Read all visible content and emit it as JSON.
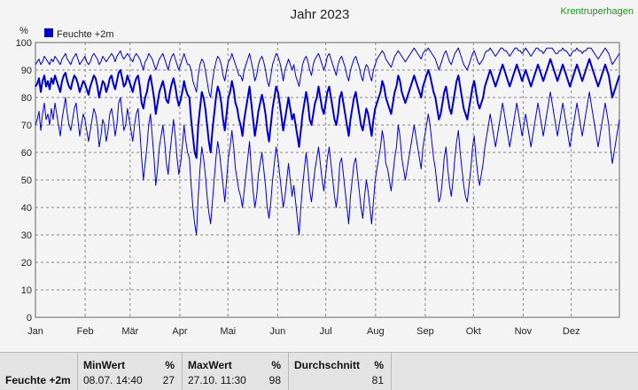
{
  "header": {
    "title": "Jahr 2023",
    "station": "Krentruperhagen"
  },
  "chart_data": {
    "type": "line",
    "title": "Jahr 2023",
    "ylabel": "%",
    "ylim": [
      0,
      100
    ],
    "yticks": [
      0,
      10,
      20,
      30,
      40,
      50,
      60,
      70,
      80,
      90,
      100
    ],
    "xlim": [
      "2023-01-01",
      "2023-12-31"
    ],
    "months": [
      "Jan",
      "Feb",
      "Mär",
      "Apr",
      "Mai",
      "Jun",
      "Jul",
      "Aug",
      "Sep",
      "Okt",
      "Nov",
      "Dez"
    ],
    "grid": true,
    "legend_position": "top-left",
    "series": [
      {
        "name": "Feuchte +2m",
        "color": "#0000cc",
        "daily_mean": [
          84,
          85,
          87,
          82,
          86,
          88,
          84,
          86,
          83,
          87,
          85,
          88,
          86,
          84,
          82,
          86,
          88,
          89,
          86,
          84,
          83,
          86,
          88,
          87,
          85,
          82,
          84,
          86,
          85,
          83,
          81,
          84,
          86,
          88,
          87,
          84,
          80,
          83,
          86,
          85,
          82,
          84,
          87,
          88,
          85,
          83,
          86,
          89,
          90,
          87,
          84,
          85,
          88,
          86,
          84,
          82,
          85,
          87,
          88,
          84,
          78,
          76,
          80,
          82,
          86,
          88,
          84,
          80,
          74,
          78,
          82,
          84,
          86,
          83,
          79,
          78,
          82,
          85,
          87,
          84,
          80,
          77,
          79,
          82,
          86,
          83,
          81,
          80,
          72,
          66,
          60,
          58,
          70,
          76,
          82,
          80,
          76,
          70,
          64,
          60,
          68,
          74,
          80,
          84,
          82,
          78,
          72,
          68,
          74,
          80,
          82,
          86,
          83,
          78,
          76,
          72,
          70,
          66,
          72,
          76,
          80,
          84,
          78,
          72,
          66,
          70,
          75,
          78,
          81,
          78,
          74,
          68,
          64,
          70,
          76,
          80,
          84,
          82,
          78,
          73,
          68,
          72,
          76,
          80,
          76,
          72,
          74,
          70,
          66,
          62,
          68,
          74,
          78,
          82,
          78,
          72,
          70,
          74,
          78,
          80,
          84,
          80,
          76,
          74,
          78,
          82,
          84,
          80,
          76,
          72,
          70,
          74,
          80,
          82,
          78,
          74,
          70,
          66,
          72,
          76,
          80,
          82,
          78,
          74,
          70,
          68,
          72,
          76,
          74,
          70,
          66,
          72,
          76,
          78,
          80,
          82,
          86,
          84,
          80,
          78,
          76,
          74,
          78,
          82,
          84,
          88,
          86,
          82,
          80,
          78,
          80,
          82,
          84,
          86,
          88,
          86,
          84,
          82,
          80,
          84,
          86,
          88,
          90,
          88,
          85,
          82,
          80,
          76,
          72,
          74,
          78,
          82,
          84,
          80,
          76,
          74,
          78,
          82,
          86,
          88,
          84,
          80,
          76,
          74,
          72,
          76,
          80,
          84,
          86,
          82,
          78,
          76,
          78,
          80,
          84,
          86,
          88,
          90,
          88,
          86,
          84,
          86,
          88,
          90,
          92,
          90,
          88,
          86,
          84,
          86,
          88,
          90,
          92,
          90,
          88,
          86,
          88,
          90,
          88,
          86,
          84,
          86,
          88,
          90,
          92,
          90,
          88,
          86,
          88,
          90,
          92,
          94,
          92,
          90,
          88,
          86,
          88,
          90,
          92,
          90,
          88,
          86,
          84,
          86,
          88,
          90,
          92,
          90,
          88,
          86,
          88,
          90,
          92,
          94,
          92,
          90,
          88,
          86,
          84,
          86,
          88,
          90,
          92,
          90,
          88,
          84,
          80,
          82,
          84,
          86,
          88
        ],
        "daily_max": [
          92,
          93,
          94,
          92,
          93,
          95,
          94,
          93,
          92,
          94,
          93,
          95,
          94,
          93,
          92,
          94,
          95,
          96,
          94,
          93,
          92,
          94,
          95,
          96,
          94,
          92,
          93,
          94,
          95,
          93,
          92,
          93,
          95,
          96,
          95,
          94,
          92,
          93,
          95,
          94,
          93,
          94,
          95,
          96,
          95,
          93,
          95,
          96,
          97,
          95,
          94,
          95,
          96,
          95,
          94,
          93,
          95,
          96,
          95,
          94,
          92,
          90,
          93,
          94,
          96,
          95,
          94,
          92,
          90,
          92,
          94,
          95,
          96,
          94,
          92,
          90,
          93,
          95,
          96,
          94,
          92,
          90,
          92,
          94,
          96,
          94,
          92,
          92,
          90,
          86,
          84,
          82,
          88,
          92,
          94,
          93,
          90,
          86,
          82,
          80,
          86,
          90,
          93,
          95,
          94,
          92,
          88,
          86,
          90,
          93,
          94,
          96,
          94,
          92,
          90,
          88,
          88,
          86,
          90,
          92,
          94,
          96,
          93,
          90,
          86,
          88,
          92,
          94,
          95,
          93,
          90,
          86,
          84,
          88,
          92,
          94,
          96,
          95,
          93,
          90,
          86,
          90,
          92,
          94,
          92,
          90,
          92,
          88,
          86,
          84,
          88,
          92,
          94,
          95,
          93,
          90,
          88,
          92,
          94,
          95,
          96,
          94,
          92,
          90,
          92,
          95,
          96,
          94,
          92,
          90,
          88,
          92,
          94,
          95,
          93,
          91,
          88,
          86,
          90,
          92,
          94,
          95,
          93,
          91,
          88,
          86,
          90,
          92,
          91,
          88,
          86,
          90,
          92,
          94,
          95,
          96,
          97,
          96,
          94,
          93,
          92,
          91,
          93,
          95,
          96,
          97,
          96,
          95,
          94,
          93,
          94,
          95,
          96,
          97,
          98,
          97,
          96,
          95,
          94,
          96,
          97,
          97,
          98,
          97,
          96,
          95,
          94,
          92,
          90,
          92,
          94,
          96,
          97,
          95,
          93,
          92,
          94,
          96,
          97,
          98,
          96,
          94,
          92,
          91,
          90,
          92,
          94,
          96,
          97,
          95,
          93,
          92,
          93,
          94,
          96,
          97,
          97,
          98,
          97,
          96,
          95,
          96,
          97,
          98,
          98,
          97,
          97,
          96,
          95,
          96,
          97,
          98,
          98,
          97,
          97,
          96,
          97,
          98,
          97,
          96,
          95,
          96,
          97,
          98,
          98,
          97,
          97,
          96,
          97,
          98,
          98,
          98,
          98,
          97,
          96,
          96,
          97,
          97,
          98,
          97,
          97,
          96,
          95,
          96,
          97,
          97,
          98,
          97,
          97,
          96,
          97,
          97,
          98,
          98,
          98,
          97,
          96,
          95,
          94,
          95,
          96,
          97,
          98,
          97,
          96,
          94,
          92,
          93,
          94,
          95,
          96
        ],
        "daily_min": [
          70,
          72,
          75,
          68,
          74,
          78,
          72,
          74,
          70,
          76,
          72,
          78,
          74,
          70,
          66,
          72,
          76,
          80,
          74,
          70,
          68,
          72,
          76,
          78,
          72,
          66,
          70,
          74,
          72,
          68,
          64,
          68,
          72,
          76,
          74,
          70,
          62,
          66,
          72,
          70,
          64,
          68,
          74,
          76,
          72,
          66,
          70,
          78,
          80,
          74,
          68,
          70,
          76,
          72,
          68,
          64,
          70,
          74,
          76,
          68,
          58,
          50,
          56,
          62,
          70,
          74,
          66,
          58,
          48,
          54,
          62,
          66,
          70,
          64,
          56,
          52,
          60,
          66,
          72,
          66,
          58,
          52,
          56,
          62,
          70,
          64,
          60,
          58,
          48,
          40,
          34,
          30,
          44,
          54,
          62,
          58,
          52,
          44,
          38,
          34,
          42,
          50,
          58,
          64,
          60,
          54,
          48,
          42,
          50,
          58,
          62,
          68,
          62,
          54,
          50,
          46,
          44,
          40,
          46,
          52,
          58,
          64,
          54,
          46,
          40,
          44,
          52,
          56,
          60,
          54,
          48,
          40,
          36,
          42,
          50,
          56,
          62,
          58,
          52,
          46,
          40,
          44,
          50,
          56,
          50,
          44,
          48,
          42,
          36,
          30,
          40,
          48,
          54,
          60,
          54,
          46,
          42,
          48,
          54,
          58,
          62,
          56,
          50,
          46,
          52,
          58,
          62,
          56,
          50,
          44,
          40,
          46,
          56,
          58,
          52,
          46,
          40,
          34,
          44,
          50,
          56,
          58,
          52,
          46,
          40,
          36,
          44,
          50,
          46,
          40,
          34,
          42,
          50,
          54,
          58,
          62,
          68,
          64,
          56,
          54,
          50,
          46,
          52,
          58,
          62,
          70,
          66,
          58,
          54,
          50,
          54,
          58,
          62,
          66,
          70,
          66,
          62,
          58,
          54,
          62,
          66,
          70,
          74,
          70,
          64,
          58,
          54,
          48,
          42,
          44,
          50,
          58,
          62,
          54,
          48,
          44,
          50,
          58,
          64,
          68,
          60,
          54,
          48,
          44,
          42,
          48,
          54,
          62,
          66,
          58,
          52,
          48,
          52,
          56,
          62,
          66,
          70,
          74,
          70,
          66,
          62,
          66,
          70,
          74,
          78,
          74,
          70,
          66,
          62,
          66,
          70,
          74,
          78,
          74,
          70,
          66,
          70,
          74,
          70,
          66,
          62,
          66,
          70,
          74,
          78,
          74,
          70,
          66,
          70,
          74,
          78,
          82,
          78,
          74,
          70,
          66,
          70,
          74,
          78,
          74,
          70,
          66,
          62,
          66,
          70,
          74,
          78,
          74,
          70,
          66,
          70,
          74,
          78,
          82,
          78,
          74,
          70,
          66,
          62,
          66,
          70,
          74,
          78,
          74,
          70,
          62,
          56,
          60,
          64,
          68,
          72
        ]
      }
    ]
  },
  "stats": {
    "row_label": "Feuchte +2m",
    "min": {
      "label": "MinWert",
      "unit": "%",
      "date": "08.07.  14:40",
      "value": "27"
    },
    "max": {
      "label": "MaxWert",
      "unit": "%",
      "date": "27.10.  11:30",
      "value": "98"
    },
    "avg": {
      "label": "Durchschnitt",
      "unit": "%",
      "value": "81"
    }
  }
}
